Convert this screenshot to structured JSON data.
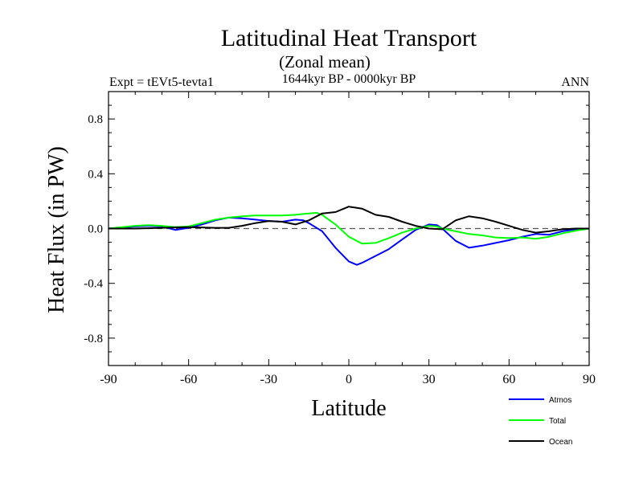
{
  "chart_data": {
    "type": "line",
    "title": "Latitudinal Heat Transport",
    "subtitle": "(Zonal mean)",
    "left_label": "Expt = tEVt5-tevta1",
    "center_label": "1644kyr BP - 0000kyr BP",
    "right_label": "ANN",
    "xlabel": "Latitude",
    "ylabel": "Heat Flux (in PW)",
    "xlim": [
      -90,
      90
    ],
    "ylim": [
      -1.0,
      1.0
    ],
    "xticks": [
      -90,
      -60,
      -30,
      0,
      30,
      60,
      90
    ],
    "xtick_labels": [
      "-90",
      "-60",
      "-30",
      "0",
      "30",
      "60",
      "90"
    ],
    "yticks": [
      -0.8,
      -0.4,
      0.0,
      0.4,
      0.8
    ],
    "ytick_labels": [
      "-0.8",
      "-0.4",
      "0.0",
      "0.4",
      "0.8"
    ],
    "zero_line": true,
    "legend_position": "bottom-right",
    "series": [
      {
        "name": "Atmos",
        "color": "#0000ff",
        "x": [
          -90,
          -80,
          -75,
          -70,
          -65,
          -60,
          -55,
          -50,
          -45,
          -40,
          -35,
          -30,
          -25,
          -20,
          -17,
          -15,
          -10,
          -5,
          0,
          3,
          5,
          10,
          15,
          20,
          25,
          30,
          33,
          35,
          40,
          45,
          50,
          55,
          60,
          65,
          70,
          75,
          80,
          85,
          90
        ],
        "values": [
          0.0,
          0.015,
          0.02,
          0.015,
          -0.01,
          0.005,
          0.03,
          0.06,
          0.08,
          0.075,
          0.065,
          0.055,
          0.05,
          0.065,
          0.06,
          0.04,
          -0.02,
          -0.14,
          -0.24,
          -0.265,
          -0.25,
          -0.2,
          -0.15,
          -0.08,
          -0.01,
          0.03,
          0.025,
          0.0,
          -0.09,
          -0.14,
          -0.125,
          -0.105,
          -0.085,
          -0.06,
          -0.04,
          -0.045,
          -0.02,
          -0.005,
          0.0
        ]
      },
      {
        "name": "Total",
        "color": "#00ff00",
        "x": [
          -90,
          -80,
          -75,
          -70,
          -65,
          -60,
          -55,
          -50,
          -45,
          -40,
          -35,
          -30,
          -25,
          -20,
          -15,
          -12,
          -10,
          -5,
          0,
          5,
          10,
          15,
          20,
          25,
          30,
          33,
          35,
          40,
          45,
          50,
          55,
          60,
          65,
          70,
          75,
          80,
          85,
          90
        ],
        "values": [
          0.0,
          0.02,
          0.025,
          0.02,
          0.01,
          0.015,
          0.04,
          0.065,
          0.08,
          0.09,
          0.095,
          0.095,
          0.095,
          0.1,
          0.11,
          0.115,
          0.1,
          0.03,
          -0.06,
          -0.11,
          -0.105,
          -0.07,
          -0.03,
          0.0,
          0.02,
          0.015,
          0.0,
          -0.02,
          -0.04,
          -0.05,
          -0.065,
          -0.07,
          -0.065,
          -0.075,
          -0.06,
          -0.035,
          -0.015,
          0.0
        ]
      },
      {
        "name": "Ocean",
        "color": "#000000",
        "x": [
          -90,
          -80,
          -70,
          -60,
          -50,
          -45,
          -40,
          -35,
          -30,
          -25,
          -20,
          -15,
          -10,
          -5,
          0,
          5,
          10,
          15,
          20,
          25,
          30,
          35,
          40,
          45,
          50,
          55,
          60,
          65,
          70,
          75,
          80,
          85,
          90
        ],
        "values": [
          0.0,
          0.0,
          0.005,
          0.01,
          0.005,
          0.005,
          0.02,
          0.04,
          0.055,
          0.05,
          0.03,
          0.06,
          0.11,
          0.12,
          0.16,
          0.145,
          0.1,
          0.085,
          0.05,
          0.02,
          0.0,
          -0.005,
          0.06,
          0.09,
          0.075,
          0.05,
          0.02,
          -0.01,
          -0.03,
          -0.02,
          -0.005,
          0.0,
          0.0
        ]
      }
    ]
  }
}
